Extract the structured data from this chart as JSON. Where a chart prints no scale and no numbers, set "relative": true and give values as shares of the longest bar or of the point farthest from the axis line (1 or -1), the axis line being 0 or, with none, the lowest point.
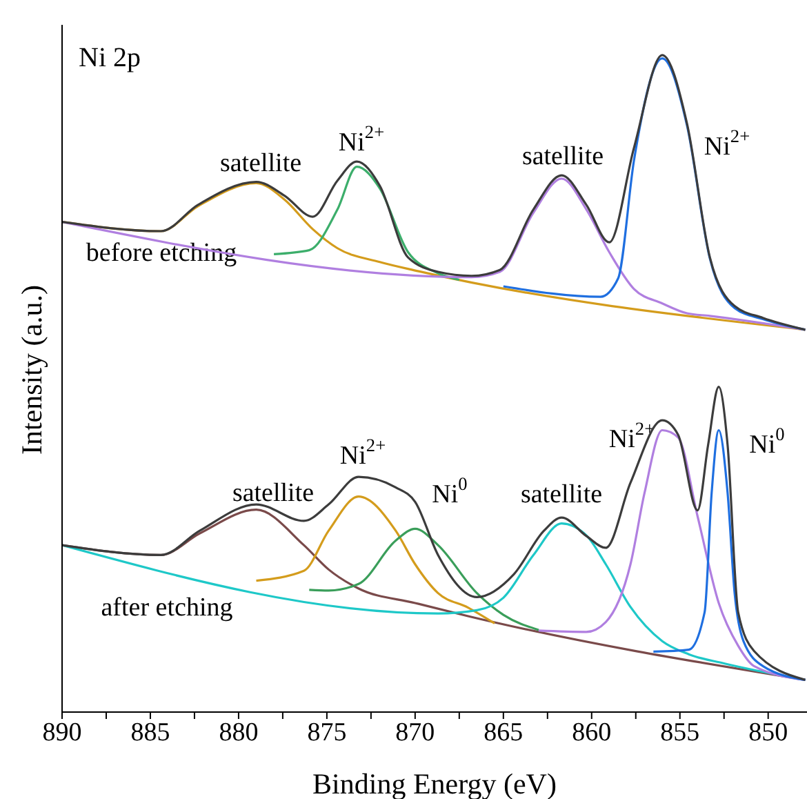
{
  "chart_data": {
    "type": "line",
    "title": "Ni 2p",
    "xlabel": "Binding Energy (eV)",
    "ylabel": "Intensity (a.u.)",
    "relative": true,
    "xlim": [
      890,
      847.8
    ],
    "xticks": [
      890,
      {
        "value": 887.5,
        "label": null
      },
      885,
      {
        "value": 882.5,
        "label": null
      },
      880,
      {
        "value": 877.5,
        "label": null
      },
      875,
      {
        "value": 872.5,
        "label": null
      },
      870,
      {
        "value": 867.5,
        "label": null
      },
      865,
      {
        "value": 862.5,
        "label": null
      },
      860,
      {
        "value": 857.5,
        "label": null
      },
      855,
      {
        "value": 852.5,
        "label": null
      },
      850
    ],
    "grid": false,
    "legend": false,
    "marker": "none",
    "line_style": "solid",
    "series": [
      {
        "color": "#d49c1c",
        "x": [
          890,
          884.4,
          882.3,
          879.0,
          877.4,
          875.8,
          874.4,
          872.0,
          869.8,
          847.9
        ],
        "values": [
          0.746,
          0.732,
          0.77,
          0.805,
          0.78,
          0.735,
          0.706,
          0.685,
          0.671,
          0.582
        ]
      },
      {
        "color": "#3cae6b",
        "x": [
          878,
          876,
          874.4,
          873.3,
          872.0,
          870.4,
          868.7,
          867.5
        ],
        "values": [
          0.697,
          0.703,
          0.765,
          0.83,
          0.797,
          0.7,
          0.668,
          0.658
        ]
      },
      {
        "color": "#b07fe0",
        "x": [
          890,
          866.8,
          865.2,
          863.3,
          861.7,
          860.3,
          859.0,
          857.6,
          856.0,
          854.6,
          853.3,
          847.9
        ],
        "values": [
          0.746,
          0.662,
          0.67,
          0.76,
          0.812,
          0.765,
          0.7,
          0.644,
          0.622,
          0.607,
          0.603,
          0.582
        ]
      },
      {
        "color": "#1f6fe0",
        "x": [
          865,
          859.5,
          858.5,
          857.6,
          856.0,
          854.6,
          853.3,
          851.9,
          850.3,
          847.9
        ],
        "values": [
          0.648,
          0.632,
          0.66,
          0.84,
          0.995,
          0.893,
          0.69,
          0.615,
          0.598,
          0.582
        ]
      },
      {
        "color": "#3c3c3c",
        "x": [
          890,
          884.4,
          882.3,
          879.0,
          877.4,
          875.8,
          874.4,
          873.3,
          872.0,
          870.4,
          868.7,
          866.8,
          865.2,
          863.3,
          861.7,
          860.3,
          859.0,
          857.6,
          856.0,
          854.6,
          853.3,
          851.9,
          850.3,
          847.9
        ],
        "values": [
          0.746,
          0.732,
          0.772,
          0.807,
          0.786,
          0.754,
          0.809,
          0.838,
          0.801,
          0.692,
          0.67,
          0.664,
          0.673,
          0.765,
          0.817,
          0.772,
          0.715,
          0.859,
          1.0,
          0.896,
          0.692,
          0.618,
          0.6,
          0.582
        ]
      },
      {
        "color": "#7a4a4a",
        "x": [
          890,
          884.4,
          882.2,
          879.0,
          876.3,
          874.9,
          873.2,
          870.0,
          867.0,
          847.9
        ],
        "values": [
          0.254,
          0.239,
          0.272,
          0.308,
          0.254,
          0.217,
          0.188,
          0.166,
          0.146,
          0.049
        ]
      },
      {
        "color": "#d49c1c",
        "x": [
          879,
          876.3,
          874.9,
          873.2,
          871.1,
          870.0,
          868.7,
          867.0,
          865.5
        ],
        "values": [
          0.2,
          0.215,
          0.276,
          0.328,
          0.276,
          0.225,
          0.181,
          0.159,
          0.135
        ]
      },
      {
        "color": "#3a9e5a",
        "x": [
          876,
          874.9,
          873.2,
          871.1,
          870.0,
          868.7,
          866.5,
          865.0,
          863.0
        ],
        "values": [
          0.186,
          0.185,
          0.195,
          0.261,
          0.279,
          0.254,
          0.181,
          0.148,
          0.125
        ]
      },
      {
        "color": "#1ec8c8",
        "x": [
          890,
          868.7,
          866.5,
          865.0,
          863.3,
          861.7,
          860.3,
          859.2,
          857.8,
          856.0,
          854.5,
          852.5,
          847.9
        ],
        "values": [
          0.254,
          0.15,
          0.155,
          0.174,
          0.239,
          0.287,
          0.269,
          0.225,
          0.16,
          0.108,
          0.088,
          0.074,
          0.049
        ]
      },
      {
        "color": "#b07fe0",
        "x": [
          863,
          860.3,
          859.2,
          857.8,
          857.0,
          856.0,
          855.1,
          854.0,
          852.8,
          851.7,
          850.8,
          847.9
        ],
        "values": [
          0.124,
          0.122,
          0.137,
          0.225,
          0.334,
          0.429,
          0.418,
          0.298,
          0.166,
          0.101,
          0.07,
          0.049
        ]
      },
      {
        "color": "#1f6fe0",
        "x": [
          856.5,
          854.5,
          853.6,
          853.2,
          852.8,
          852.3,
          851.9,
          851.4,
          850.3,
          847.9
        ],
        "values": [
          0.092,
          0.095,
          0.152,
          0.334,
          0.429,
          0.334,
          0.181,
          0.108,
          0.07,
          0.049
        ]
      },
      {
        "color": "#3c3c3c",
        "x": [
          890,
          884.4,
          882.2,
          879.0,
          876.3,
          874.9,
          873.2,
          871.1,
          870.0,
          868.7,
          866.5,
          864.4,
          862.7,
          861.7,
          860.3,
          859.2,
          857.8,
          856.0,
          855.1,
          854.0,
          853.4,
          852.8,
          852.3,
          851.7,
          850.8,
          847.9
        ],
        "values": [
          0.254,
          0.239,
          0.276,
          0.316,
          0.291,
          0.316,
          0.358,
          0.342,
          0.32,
          0.239,
          0.175,
          0.21,
          0.276,
          0.296,
          0.268,
          0.25,
          0.349,
          0.444,
          0.422,
          0.307,
          0.407,
          0.495,
          0.407,
          0.152,
          0.093,
          0.049
        ]
      }
    ],
    "annotations": [
      "satellite",
      "Ni$^{2+}$",
      "satellite",
      "Ni$^{2+}$",
      "before etching",
      "satellite",
      "Ni$^{2+}$",
      "Ni$^{0}$",
      "satellite",
      "Ni$^{2+}$",
      "Ni$^{0}$",
      "after etching"
    ]
  }
}
